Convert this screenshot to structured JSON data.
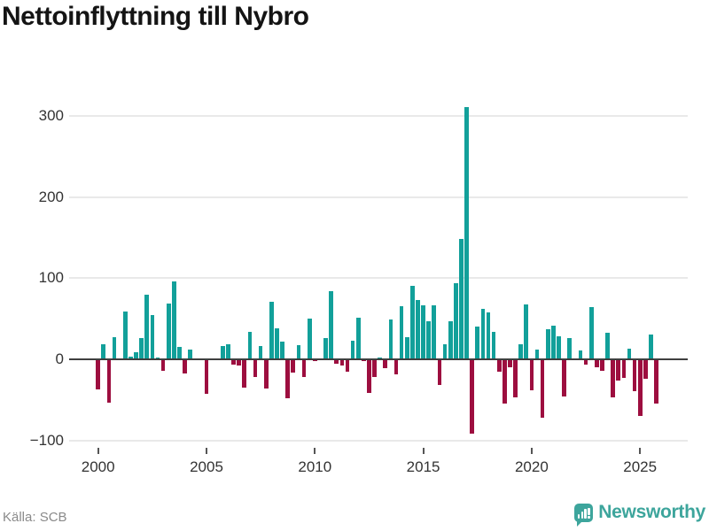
{
  "title": "Nettoinflyttning till Nybro",
  "source": "Källa: SCB",
  "brand": {
    "name": "Newsworthy"
  },
  "colors": {
    "positive_bar": "#12a09a",
    "negative_bar": "#9d0e3f",
    "axis_line": "#3f3f3f",
    "gridline": "#e9e9e9",
    "axis_text": "#333333",
    "title_text": "#141414",
    "source_text": "#8a8a8a",
    "brand_teal": "#3da59c"
  },
  "chart_data": {
    "type": "bar",
    "title": "Nettoinflyttning till Nybro",
    "xlabel": "",
    "ylabel": "",
    "frequency": "quarterly",
    "x_start": "2000-Q1",
    "x_end": "2025-Q4",
    "ylim": [
      -100,
      320
    ],
    "grid": true,
    "legend": false,
    "y_ticks": [
      {
        "value": -100,
        "label": "−100"
      },
      {
        "value": 0,
        "label": "0"
      },
      {
        "value": 100,
        "label": "100"
      },
      {
        "value": 200,
        "label": "200"
      },
      {
        "value": 300,
        "label": "300"
      }
    ],
    "x_ticks": [
      {
        "year": 2000,
        "label": "2000"
      },
      {
        "year": 2005,
        "label": "2005"
      },
      {
        "year": 2010,
        "label": "2010"
      },
      {
        "year": 2015,
        "label": "2015"
      },
      {
        "year": 2020,
        "label": "2020"
      },
      {
        "year": 2025,
        "label": "2025"
      }
    ],
    "series": [
      {
        "year": 2000,
        "quarters": [
          -37,
          18,
          -53,
          27
        ]
      },
      {
        "year": 2001,
        "quarters": [
          0,
          59,
          3,
          9
        ]
      },
      {
        "year": 2002,
        "quarters": [
          26,
          80,
          55,
          2
        ]
      },
      {
        "year": 2003,
        "quarters": [
          -14,
          69,
          96,
          15
        ]
      },
      {
        "year": 2004,
        "quarters": [
          -17,
          12,
          0,
          0
        ]
      },
      {
        "year": 2005,
        "quarters": [
          -42,
          0,
          0,
          16
        ]
      },
      {
        "year": 2006,
        "quarters": [
          18,
          -6,
          -8,
          -35
        ]
      },
      {
        "year": 2007,
        "quarters": [
          34,
          -22,
          16,
          -36
        ]
      },
      {
        "year": 2008,
        "quarters": [
          71,
          38,
          22,
          -48
        ]
      },
      {
        "year": 2009,
        "quarters": [
          -16,
          17,
          -22,
          50
        ]
      },
      {
        "year": 2010,
        "quarters": [
          -2,
          0,
          26,
          84
        ]
      },
      {
        "year": 2011,
        "quarters": [
          -5,
          -8,
          -15,
          23
        ]
      },
      {
        "year": 2012,
        "quarters": [
          51,
          -2,
          -41,
          -22
        ]
      },
      {
        "year": 2013,
        "quarters": [
          2,
          -11,
          49,
          -19
        ]
      },
      {
        "year": 2014,
        "quarters": [
          65,
          27,
          90,
          73
        ]
      },
      {
        "year": 2015,
        "quarters": [
          67,
          47,
          66,
          -32
        ]
      },
      {
        "year": 2016,
        "quarters": [
          18,
          47,
          94,
          148
        ]
      },
      {
        "year": 2017,
        "quarters": [
          311,
          -92,
          40,
          62
        ]
      },
      {
        "year": 2018,
        "quarters": [
          58,
          34,
          -15,
          -54
        ]
      },
      {
        "year": 2019,
        "quarters": [
          -10,
          -47,
          19,
          68
        ]
      },
      {
        "year": 2020,
        "quarters": [
          -38,
          12,
          -72,
          37
        ]
      },
      {
        "year": 2021,
        "quarters": [
          41,
          28,
          -46,
          26
        ]
      },
      {
        "year": 2022,
        "quarters": [
          0,
          11,
          -7,
          64
        ]
      },
      {
        "year": 2023,
        "quarters": [
          -10,
          -14,
          33,
          -47
        ]
      },
      {
        "year": 2024,
        "quarters": [
          -26,
          -23,
          13,
          -39
        ]
      },
      {
        "year": 2025,
        "quarters": [
          -70,
          -24,
          31,
          -54
        ]
      }
    ]
  }
}
